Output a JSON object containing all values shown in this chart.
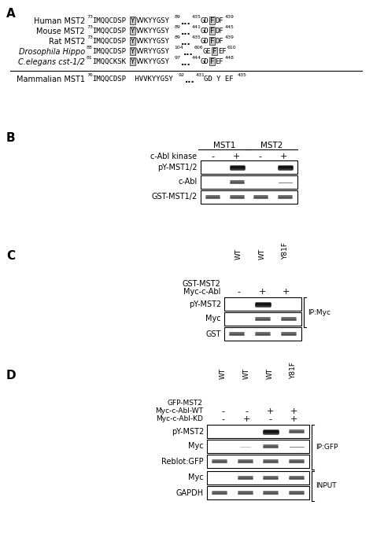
{
  "bg_color": "#ffffff",
  "text_color": "#000000",
  "panel_A": {
    "rows": [
      {
        "name": "Human MST2",
        "italic": false,
        "num_start": "73",
        "seq1": "IMQQCDSP",
        "boxed_y1": "Y",
        "seq2": "VVKYYGSY",
        "num_end": "89",
        "num2": "435",
        "seq3": "GD",
        "boxed_y2": "F",
        "seq4": "DF",
        "num3": "439"
      },
      {
        "name": "Mouse MST2",
        "italic": false,
        "num_start": "73",
        "seq1": "IMQQCDSP",
        "boxed_y1": "Y",
        "seq2": "VVKYYGSY",
        "num_end": "89",
        "num2": "441",
        "seq3": "GD",
        "boxed_y2": "F",
        "seq4": "DF",
        "num3": "445"
      },
      {
        "name": "Rat MST2",
        "italic": false,
        "num_start": "73",
        "seq1": "IMQQCDSP",
        "boxed_y1": "Y",
        "seq2": "VVKYYGSY",
        "num_end": "89",
        "num2": "435",
        "seq3": "GD",
        "boxed_y2": "F",
        "seq4": "DF",
        "num3": "439"
      },
      {
        "name": "Drosophila Hippo",
        "italic": true,
        "num_start": "88",
        "seq1": "IMQQCDSP",
        "boxed_y1": "Y",
        "seq2": "VVRYYGSY",
        "num_end": "104",
        "num2": "606",
        "seq3": "GE",
        "boxed_y2": "F",
        "seq4": "EF",
        "num3": "610"
      },
      {
        "name_italic": "C.elegans",
        "name_normal": " cst-1/2",
        "italic": false,
        "num_start": "81",
        "seq1": "IMQQCKSK",
        "boxed_y1": "Y",
        "seq2": "VVKYYGSY",
        "num_end": "97",
        "num2": "444",
        "seq3": "GD",
        "boxed_y2": "F",
        "seq4": "EF",
        "num3": "448"
      }
    ],
    "mst1_row": {
      "name": "Mammalian MST1",
      "num_start": "76",
      "seq1": "IMQQCDSP",
      "seq2": " HVVKYYGSY",
      "num_end": "92",
      "num2": "431",
      "seq3": "GD Y EF",
      "num3": "435"
    }
  }
}
